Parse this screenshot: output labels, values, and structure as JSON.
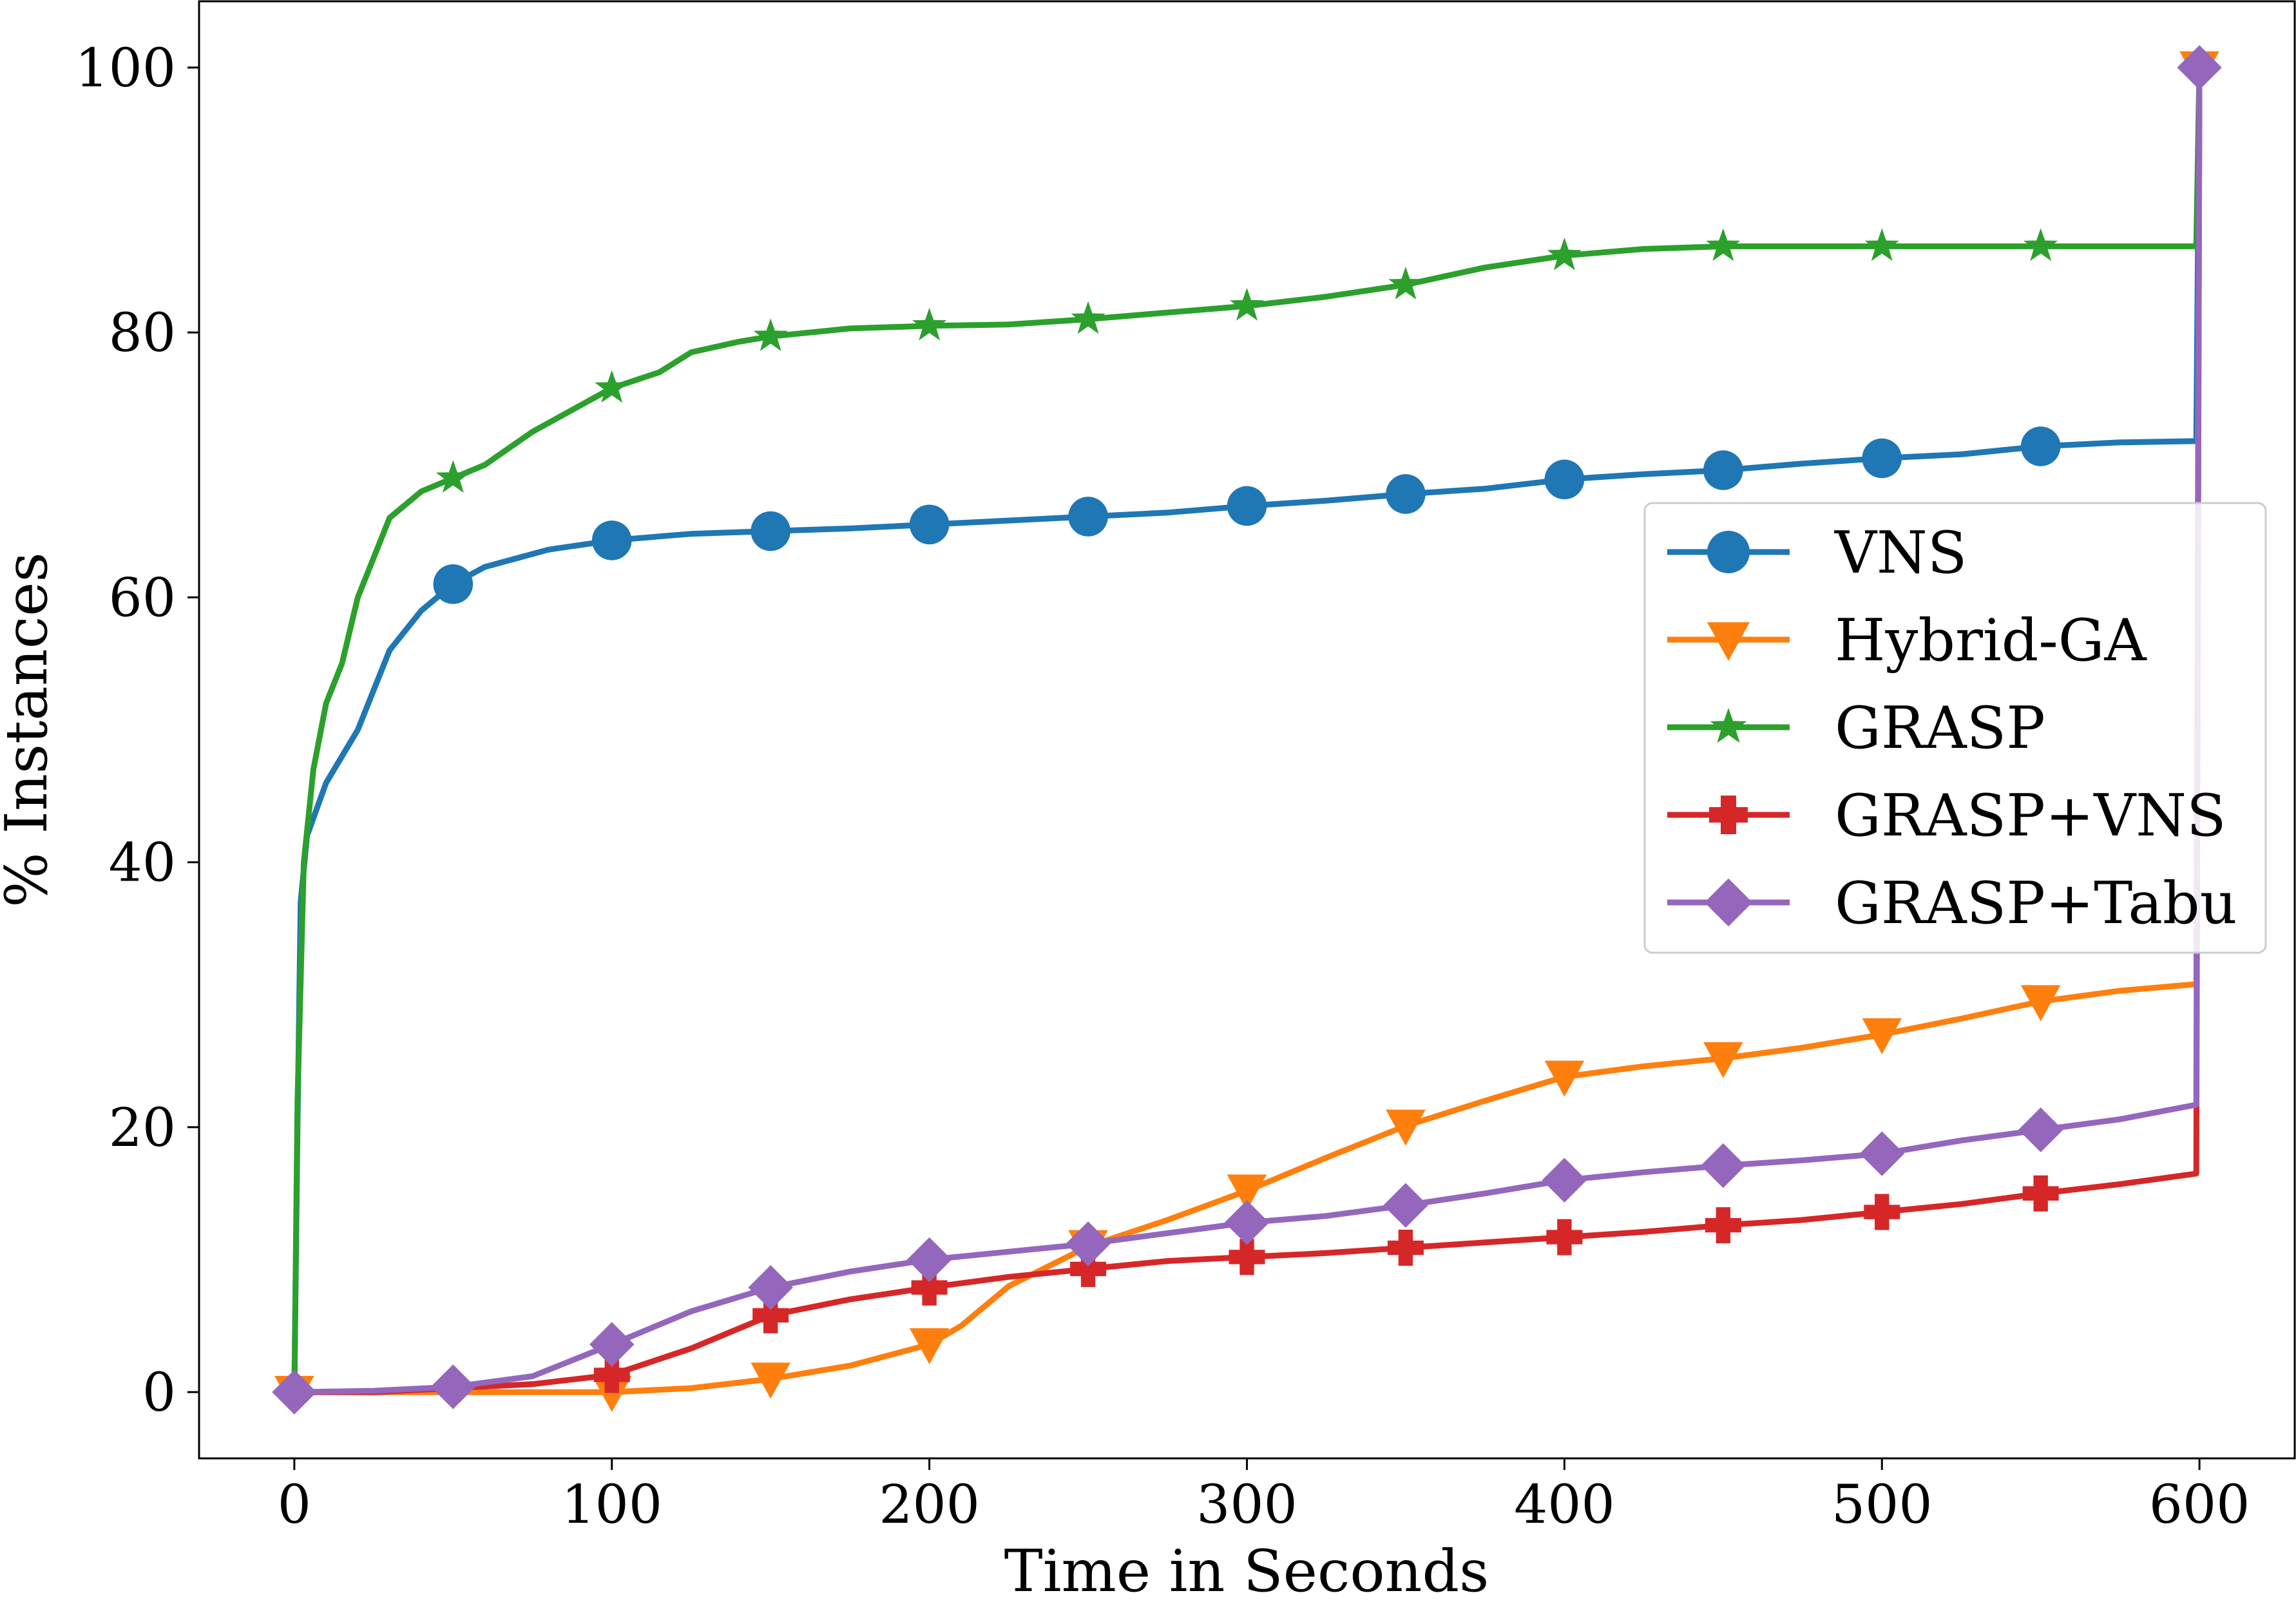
{
  "chart_data": {
    "type": "line",
    "title": "",
    "xlabel": "Time in Seconds",
    "ylabel": "% Instances",
    "xlim": [
      -30,
      630
    ],
    "ylim": [
      -5,
      105
    ],
    "xticks": [
      "0",
      "100",
      "200",
      "300",
      "400",
      "500",
      "600"
    ],
    "yticks": [
      "0",
      "20",
      "40",
      "60",
      "80",
      "100"
    ],
    "grid": false,
    "legend_position": "center-right",
    "series": [
      {
        "name": "VNS",
        "color": "#1f77b4",
        "marker": "circle",
        "points": [
          [
            0,
            0
          ],
          [
            1,
            20
          ],
          [
            2,
            37
          ],
          [
            4,
            42
          ],
          [
            10,
            46
          ],
          [
            20,
            50
          ],
          [
            30,
            56
          ],
          [
            40,
            59
          ],
          [
            50,
            61
          ],
          [
            60,
            62.3
          ],
          [
            80,
            63.6
          ],
          [
            100,
            64.3
          ],
          [
            125,
            64.8
          ],
          [
            150,
            65
          ],
          [
            175,
            65.2
          ],
          [
            200,
            65.5
          ],
          [
            225,
            65.8
          ],
          [
            250,
            66.1
          ],
          [
            275,
            66.4
          ],
          [
            300,
            66.9
          ],
          [
            325,
            67.3
          ],
          [
            350,
            67.8
          ],
          [
            375,
            68.2
          ],
          [
            400,
            68.9
          ],
          [
            425,
            69.3
          ],
          [
            450,
            69.6
          ],
          [
            475,
            70.1
          ],
          [
            500,
            70.5
          ],
          [
            525,
            70.8
          ],
          [
            550,
            71.4
          ],
          [
            575,
            71.7
          ],
          [
            599,
            71.8
          ],
          [
            600,
            100
          ]
        ],
        "marker_x": [
          50,
          100,
          150,
          200,
          250,
          300,
          350,
          400,
          450,
          500,
          550
        ]
      },
      {
        "name": "Hybrid-GA",
        "color": "#ff7f0e",
        "marker": "triangle-down",
        "points": [
          [
            0,
            0
          ],
          [
            50,
            0
          ],
          [
            100,
            0
          ],
          [
            125,
            0.3
          ],
          [
            150,
            1
          ],
          [
            175,
            2
          ],
          [
            200,
            3.6
          ],
          [
            210,
            5
          ],
          [
            225,
            8
          ],
          [
            250,
            11
          ],
          [
            275,
            13
          ],
          [
            300,
            15.2
          ],
          [
            325,
            17.7
          ],
          [
            350,
            20.1
          ],
          [
            375,
            22
          ],
          [
            400,
            23.8
          ],
          [
            425,
            24.6
          ],
          [
            450,
            25.2
          ],
          [
            475,
            26
          ],
          [
            500,
            27
          ],
          [
            525,
            28.2
          ],
          [
            550,
            29.5
          ],
          [
            575,
            30.3
          ],
          [
            599,
            30.8
          ],
          [
            600,
            100
          ]
        ],
        "marker_x": [
          0,
          100,
          150,
          200,
          250,
          300,
          350,
          400,
          450,
          500,
          550,
          600
        ]
      },
      {
        "name": "GRASP",
        "color": "#2ca02c",
        "marker": "star",
        "points": [
          [
            0,
            0
          ],
          [
            1,
            22
          ],
          [
            3,
            40
          ],
          [
            6,
            47
          ],
          [
            10,
            52
          ],
          [
            15,
            55
          ],
          [
            20,
            60
          ],
          [
            25,
            63
          ],
          [
            30,
            66
          ],
          [
            40,
            68
          ],
          [
            50,
            69
          ],
          [
            60,
            70
          ],
          [
            75,
            72.5
          ],
          [
            100,
            75.8
          ],
          [
            115,
            77
          ],
          [
            125,
            78.5
          ],
          [
            140,
            79.3
          ],
          [
            150,
            79.7
          ],
          [
            175,
            80.3
          ],
          [
            200,
            80.5
          ],
          [
            225,
            80.6
          ],
          [
            250,
            81
          ],
          [
            275,
            81.5
          ],
          [
            300,
            82
          ],
          [
            325,
            82.7
          ],
          [
            350,
            83.6
          ],
          [
            375,
            84.9
          ],
          [
            400,
            85.8
          ],
          [
            425,
            86.3
          ],
          [
            450,
            86.5
          ],
          [
            500,
            86.5
          ],
          [
            550,
            86.5
          ],
          [
            599,
            86.5
          ],
          [
            600,
            100
          ]
        ],
        "marker_x": [
          50,
          100,
          150,
          200,
          250,
          300,
          350,
          400,
          450,
          500,
          550
        ]
      },
      {
        "name": "GRASP+VNS",
        "color": "#d62728",
        "marker": "plus",
        "points": [
          [
            0,
            0
          ],
          [
            25,
            0
          ],
          [
            50,
            0.3
          ],
          [
            75,
            0.6
          ],
          [
            100,
            1.3
          ],
          [
            125,
            3.3
          ],
          [
            150,
            5.8
          ],
          [
            175,
            7
          ],
          [
            200,
            7.9
          ],
          [
            225,
            8.7
          ],
          [
            250,
            9.3
          ],
          [
            275,
            9.9
          ],
          [
            300,
            10.2
          ],
          [
            325,
            10.5
          ],
          [
            350,
            10.9
          ],
          [
            375,
            11.3
          ],
          [
            400,
            11.7
          ],
          [
            425,
            12.1
          ],
          [
            450,
            12.6
          ],
          [
            475,
            13
          ],
          [
            500,
            13.6
          ],
          [
            525,
            14.2
          ],
          [
            550,
            15
          ],
          [
            575,
            15.7
          ],
          [
            599,
            16.5
          ],
          [
            600,
            100
          ]
        ],
        "marker_x": [
          100,
          150,
          200,
          250,
          300,
          350,
          400,
          450,
          500,
          550
        ]
      },
      {
        "name": "GRASP+Tabu",
        "color": "#9467bd",
        "marker": "diamond",
        "points": [
          [
            0,
            0
          ],
          [
            25,
            0.1
          ],
          [
            50,
            0.4
          ],
          [
            75,
            1.2
          ],
          [
            100,
            3.6
          ],
          [
            125,
            6.1
          ],
          [
            150,
            7.9
          ],
          [
            175,
            9.1
          ],
          [
            200,
            10
          ],
          [
            225,
            10.6
          ],
          [
            250,
            11.2
          ],
          [
            275,
            12
          ],
          [
            300,
            12.8
          ],
          [
            325,
            13.3
          ],
          [
            350,
            14.1
          ],
          [
            375,
            15
          ],
          [
            400,
            16
          ],
          [
            425,
            16.6
          ],
          [
            450,
            17.1
          ],
          [
            475,
            17.5
          ],
          [
            500,
            18
          ],
          [
            525,
            19
          ],
          [
            550,
            19.8
          ],
          [
            575,
            20.6
          ],
          [
            599,
            21.7
          ],
          [
            600,
            100
          ]
        ],
        "marker_x": [
          0,
          50,
          100,
          150,
          200,
          250,
          300,
          350,
          400,
          450,
          500,
          550,
          600
        ]
      }
    ]
  }
}
